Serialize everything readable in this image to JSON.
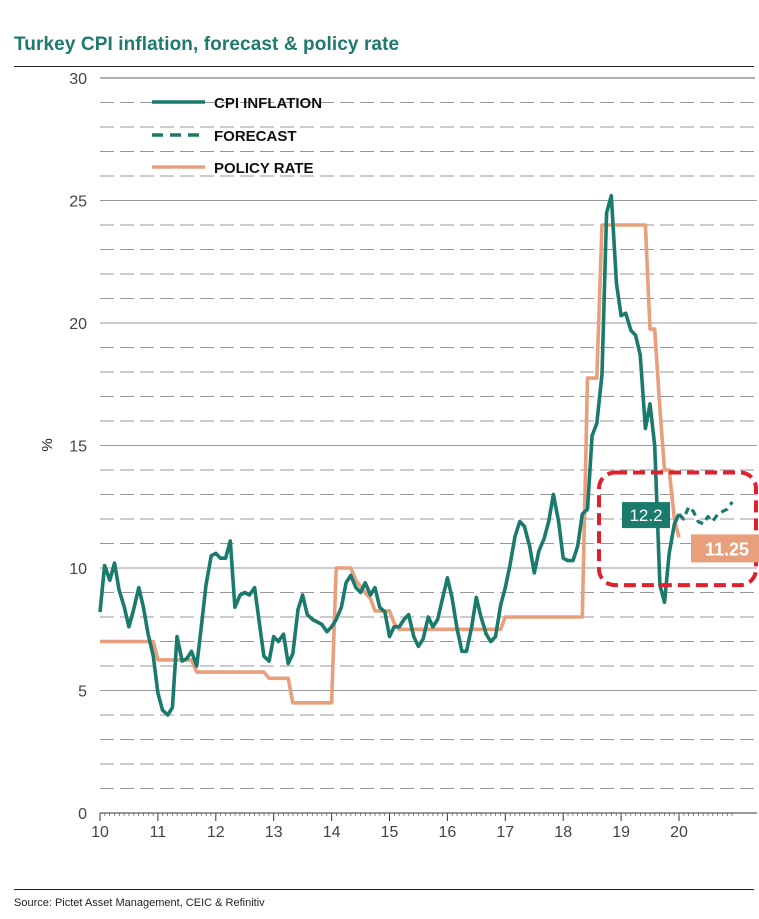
{
  "title": "Turkey CPI inflation, forecast & policy rate",
  "source": "Source: Pictet Asset Management, CEIC & Refinitiv",
  "colors": {
    "cpi": "#1a7a6c",
    "forecast": "#1a7a6c",
    "policy": "#e8a07c",
    "highlight": "#e0202a",
    "grid": "#999999"
  },
  "chart_data": {
    "type": "line",
    "title": "Turkey CPI inflation, forecast & policy rate",
    "xlabel": "",
    "ylabel": "%",
    "xlim": [
      10,
      21
    ],
    "ylim": [
      0,
      30
    ],
    "x_ticks": [
      10,
      11,
      12,
      13,
      14,
      15,
      16,
      17,
      18,
      19,
      20
    ],
    "x_tick_labels": [
      "10",
      "11",
      "12",
      "13",
      "14",
      "15",
      "16",
      "17",
      "18",
      "19",
      "20"
    ],
    "y_ticks": [
      0,
      5,
      10,
      15,
      20,
      25,
      30
    ],
    "y_tick_labels": [
      "0",
      "5",
      "10",
      "15",
      "20",
      "25",
      "30"
    ],
    "grid": true,
    "legend_position": "top-left",
    "legend": [
      "CPI INFLATION",
      "FORECAST",
      "POLICY RATE"
    ],
    "series": [
      {
        "name": "CPI INFLATION",
        "style": "solid",
        "points": [
          [
            10.0,
            8.2
          ],
          [
            10.08,
            10.1
          ],
          [
            10.17,
            9.5
          ],
          [
            10.25,
            10.2
          ],
          [
            10.33,
            9.1
          ],
          [
            10.42,
            8.4
          ],
          [
            10.5,
            7.6
          ],
          [
            10.58,
            8.3
          ],
          [
            10.67,
            9.2
          ],
          [
            10.75,
            8.4
          ],
          [
            10.83,
            7.3
          ],
          [
            10.92,
            6.4
          ],
          [
            11.0,
            4.9
          ],
          [
            11.08,
            4.2
          ],
          [
            11.17,
            4.0
          ],
          [
            11.25,
            4.3
          ],
          [
            11.33,
            7.2
          ],
          [
            11.42,
            6.2
          ],
          [
            11.5,
            6.3
          ],
          [
            11.58,
            6.6
          ],
          [
            11.67,
            6.0
          ],
          [
            11.75,
            7.6
          ],
          [
            11.83,
            9.3
          ],
          [
            11.92,
            10.5
          ],
          [
            12.0,
            10.6
          ],
          [
            12.08,
            10.4
          ],
          [
            12.17,
            10.4
          ],
          [
            12.25,
            11.1
          ],
          [
            12.33,
            8.4
          ],
          [
            12.42,
            8.9
          ],
          [
            12.5,
            9.0
          ],
          [
            12.58,
            8.9
          ],
          [
            12.67,
            9.2
          ],
          [
            12.75,
            7.8
          ],
          [
            12.83,
            6.4
          ],
          [
            12.92,
            6.2
          ],
          [
            13.0,
            7.2
          ],
          [
            13.08,
            7.0
          ],
          [
            13.17,
            7.3
          ],
          [
            13.25,
            6.1
          ],
          [
            13.33,
            6.5
          ],
          [
            13.42,
            8.3
          ],
          [
            13.5,
            8.9
          ],
          [
            13.58,
            8.1
          ],
          [
            13.67,
            7.9
          ],
          [
            13.75,
            7.8
          ],
          [
            13.83,
            7.7
          ],
          [
            13.92,
            7.4
          ],
          [
            14.0,
            7.6
          ],
          [
            14.08,
            7.9
          ],
          [
            14.17,
            8.4
          ],
          [
            14.25,
            9.4
          ],
          [
            14.33,
            9.7
          ],
          [
            14.42,
            9.2
          ],
          [
            14.5,
            9.0
          ],
          [
            14.58,
            9.4
          ],
          [
            14.67,
            8.9
          ],
          [
            14.75,
            9.2
          ],
          [
            14.83,
            8.4
          ],
          [
            14.92,
            8.2
          ],
          [
            15.0,
            7.2
          ],
          [
            15.08,
            7.6
          ],
          [
            15.17,
            7.6
          ],
          [
            15.25,
            7.9
          ],
          [
            15.33,
            8.1
          ],
          [
            15.42,
            7.2
          ],
          [
            15.5,
            6.8
          ],
          [
            15.58,
            7.1
          ],
          [
            15.67,
            8.0
          ],
          [
            15.75,
            7.6
          ],
          [
            15.83,
            7.9
          ],
          [
            15.92,
            8.8
          ],
          [
            16.0,
            9.6
          ],
          [
            16.08,
            8.8
          ],
          [
            16.17,
            7.5
          ],
          [
            16.25,
            6.6
          ],
          [
            16.33,
            6.6
          ],
          [
            16.42,
            7.6
          ],
          [
            16.5,
            8.8
          ],
          [
            16.58,
            8.0
          ],
          [
            16.67,
            7.3
          ],
          [
            16.75,
            7.0
          ],
          [
            16.83,
            7.2
          ],
          [
            16.92,
            8.5
          ],
          [
            17.0,
            9.2
          ],
          [
            17.08,
            10.1
          ],
          [
            17.17,
            11.3
          ],
          [
            17.25,
            11.9
          ],
          [
            17.33,
            11.7
          ],
          [
            17.42,
            10.9
          ],
          [
            17.5,
            9.8
          ],
          [
            17.58,
            10.7
          ],
          [
            17.67,
            11.2
          ],
          [
            17.75,
            11.9
          ],
          [
            17.83,
            13.0
          ],
          [
            17.92,
            11.9
          ],
          [
            18.0,
            10.4
          ],
          [
            18.08,
            10.3
          ],
          [
            18.17,
            10.3
          ],
          [
            18.25,
            10.9
          ],
          [
            18.33,
            12.2
          ],
          [
            18.42,
            12.4
          ],
          [
            18.5,
            15.4
          ],
          [
            18.58,
            15.9
          ],
          [
            18.67,
            17.9
          ],
          [
            18.75,
            24.5
          ],
          [
            18.83,
            25.2
          ],
          [
            18.92,
            21.6
          ],
          [
            19.0,
            20.3
          ],
          [
            19.08,
            20.4
          ],
          [
            19.17,
            19.7
          ],
          [
            19.25,
            19.5
          ],
          [
            19.33,
            18.7
          ],
          [
            19.42,
            15.7
          ],
          [
            19.5,
            16.7
          ],
          [
            19.58,
            15.0
          ],
          [
            19.67,
            9.3
          ],
          [
            19.75,
            8.6
          ],
          [
            19.83,
            10.6
          ],
          [
            19.92,
            11.8
          ],
          [
            20.0,
            12.2
          ]
        ]
      },
      {
        "name": "FORECAST",
        "style": "dashed",
        "points": [
          [
            20.0,
            12.2
          ],
          [
            20.08,
            12.0
          ],
          [
            20.17,
            12.5
          ],
          [
            20.25,
            12.3
          ],
          [
            20.33,
            11.9
          ],
          [
            20.42,
            11.8
          ],
          [
            20.5,
            12.1
          ],
          [
            20.58,
            11.9
          ],
          [
            20.67,
            12.2
          ],
          [
            20.75,
            12.3
          ],
          [
            20.83,
            12.4
          ],
          [
            20.92,
            12.7
          ]
        ]
      },
      {
        "name": "POLICY RATE",
        "style": "solid",
        "points": [
          [
            10.0,
            7.0
          ],
          [
            10.92,
            7.0
          ],
          [
            11.0,
            6.25
          ],
          [
            11.58,
            6.25
          ],
          [
            11.67,
            5.75
          ],
          [
            12.83,
            5.75
          ],
          [
            12.92,
            5.5
          ],
          [
            13.25,
            5.5
          ],
          [
            13.33,
            4.5
          ],
          [
            14.0,
            4.5
          ],
          [
            14.08,
            10.0
          ],
          [
            14.33,
            10.0
          ],
          [
            14.42,
            9.5
          ],
          [
            14.58,
            9.0
          ],
          [
            14.67,
            8.75
          ],
          [
            14.75,
            8.25
          ],
          [
            15.0,
            8.25
          ],
          [
            15.08,
            7.75
          ],
          [
            15.17,
            7.5
          ],
          [
            16.92,
            7.5
          ],
          [
            17.0,
            8.0
          ],
          [
            18.33,
            8.0
          ],
          [
            18.42,
            17.75
          ],
          [
            18.58,
            17.75
          ],
          [
            18.67,
            24.0
          ],
          [
            19.42,
            24.0
          ],
          [
            19.5,
            19.75
          ],
          [
            19.58,
            19.75
          ],
          [
            19.67,
            16.5
          ],
          [
            19.75,
            14.0
          ],
          [
            19.83,
            14.0
          ],
          [
            19.92,
            12.0
          ],
          [
            20.0,
            11.25
          ]
        ]
      }
    ],
    "annotations": [
      {
        "id": "cpi_last",
        "text": "12.2",
        "x": 20.0,
        "y": 12.2
      },
      {
        "id": "policy_last",
        "text": "11.25",
        "x": 20.0,
        "y": 11.25
      }
    ]
  }
}
